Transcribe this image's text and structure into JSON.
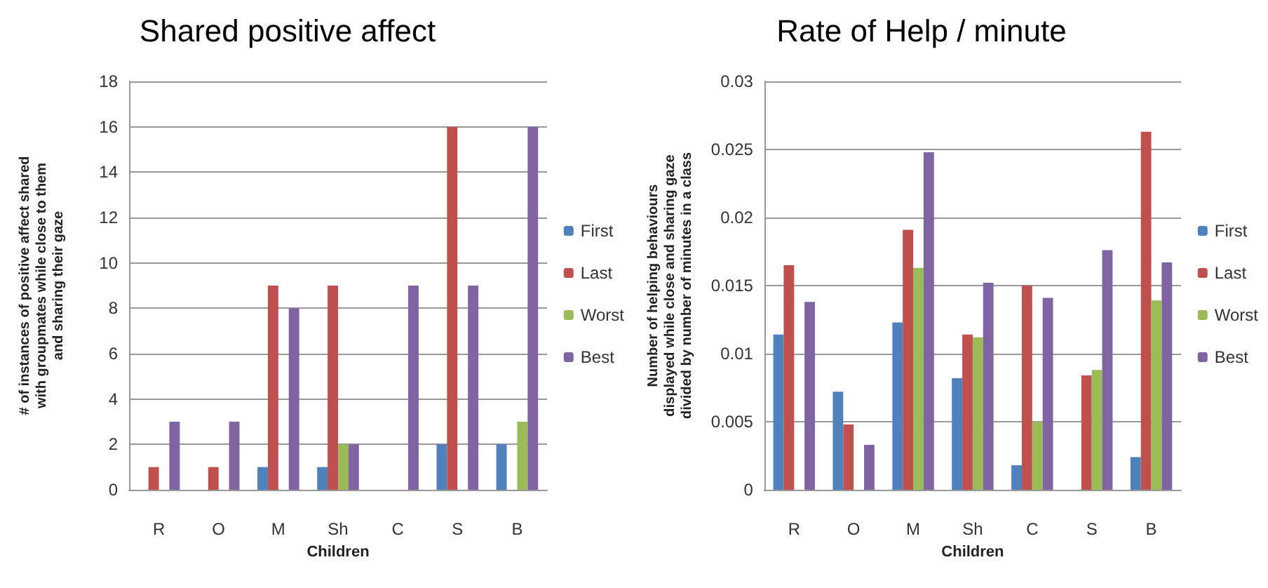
{
  "chart_data": [
    {
      "type": "bar",
      "title": "Shared positive affect",
      "xlabel": "Children",
      "ylabel": "# of instances of positive affect shared\nwith groupmates while close to them\nand sharing their gaze",
      "categories": [
        "R",
        "O",
        "M",
        "Sh",
        "C",
        "S",
        "B"
      ],
      "series": [
        {
          "name": "First",
          "color": "#4f81bd",
          "values": [
            0,
            0,
            1,
            1,
            0,
            2,
            2
          ]
        },
        {
          "name": "Last",
          "color": "#c0504d",
          "values": [
            1,
            1,
            9,
            9,
            0,
            16,
            0
          ]
        },
        {
          "name": "Worst",
          "color": "#9bbb59",
          "values": [
            0,
            0,
            0,
            2,
            0,
            0,
            3
          ]
        },
        {
          "name": "Best",
          "color": "#8064a2",
          "values": [
            3,
            3,
            8,
            2,
            9,
            9,
            16
          ]
        }
      ],
      "ylim": [
        0,
        18
      ],
      "yticks": [
        0,
        2,
        4,
        6,
        8,
        10,
        12,
        14,
        16,
        18
      ],
      "grid": "y",
      "legend": "right"
    },
    {
      "type": "bar",
      "title": "Rate of Help / minute",
      "xlabel": "Children",
      "ylabel": "Number of helping behaviours\ndisplayed while close and sharing gaze\ndivided by number of minutes in a class",
      "categories": [
        "R",
        "O",
        "M",
        "Sh",
        "C",
        "S",
        "B"
      ],
      "series": [
        {
          "name": "First",
          "color": "#4f81bd",
          "values": [
            0.0114,
            0.0072,
            0.0123,
            0.0082,
            0.0018,
            0,
            0.0024
          ]
        },
        {
          "name": "Last",
          "color": "#c0504d",
          "values": [
            0.0165,
            0.0048,
            0.0191,
            0.0114,
            0.015,
            0.0084,
            0.0263
          ]
        },
        {
          "name": "Worst",
          "color": "#9bbb59",
          "values": [
            0,
            0,
            0.0163,
            0.0112,
            0.005,
            0.0088,
            0.0139
          ]
        },
        {
          "name": "Best",
          "color": "#8064a2",
          "values": [
            0.0138,
            0.0033,
            0.0248,
            0.0152,
            0.0141,
            0.0176,
            0.0167
          ]
        }
      ],
      "ylim": [
        0,
        0.03
      ],
      "yticks": [
        0,
        0.005,
        0.01,
        0.015,
        0.02,
        0.025,
        0.03
      ],
      "grid": "y",
      "legend": "right"
    }
  ]
}
